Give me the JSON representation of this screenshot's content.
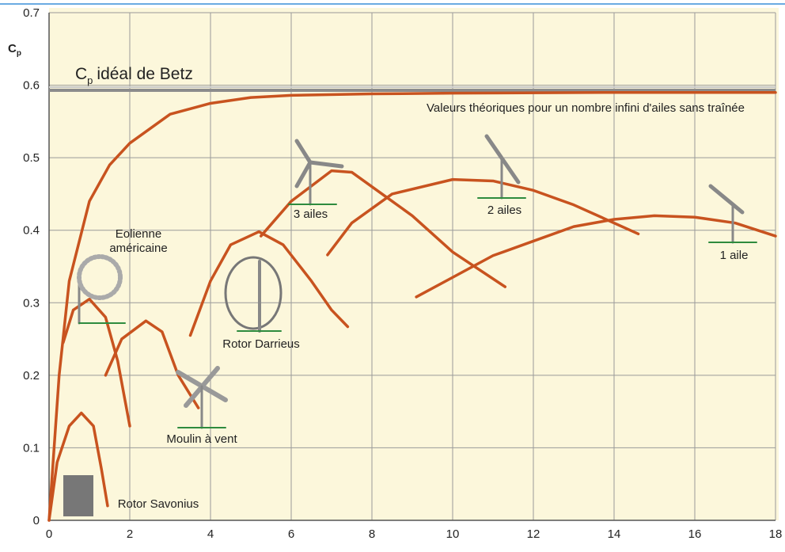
{
  "chart_data": {
    "type": "line",
    "ylabel": {
      "symbol": "C",
      "subscript": "p"
    },
    "betz": {
      "value": 0.593,
      "symbol": "C",
      "subscript": "p",
      "text": "idéal de Betz",
      "color": "#8c8c8c"
    },
    "xlim": [
      0,
      18
    ],
    "xticks": [
      0,
      2,
      4,
      6,
      8,
      10,
      12,
      14,
      16,
      18
    ],
    "ylim": [
      0,
      0.7
    ],
    "yticks": [
      0,
      0.1,
      0.2,
      0.3,
      0.4,
      0.5,
      0.6,
      0.7
    ],
    "grid": true,
    "series": [
      {
        "name": "Valeurs théoriques pour un nombre infini d'ailes sans traînée",
        "color": "#c8531f",
        "x": [
          0,
          0.25,
          0.5,
          1,
          1.5,
          2,
          3,
          4,
          5,
          6,
          8,
          10,
          14,
          18
        ],
        "values": [
          0,
          0.2,
          0.33,
          0.44,
          0.49,
          0.52,
          0.56,
          0.575,
          0.583,
          0.586,
          0.588,
          0.589,
          0.59,
          0.59
        ]
      },
      {
        "name": "Rotor Savonius",
        "color": "#c8531f",
        "x": [
          0,
          0.2,
          0.5,
          0.8,
          1.1,
          1.3,
          1.45
        ],
        "values": [
          0,
          0.08,
          0.13,
          0.148,
          0.13,
          0.07,
          0.02
        ]
      },
      {
        "name": "Eolienne américaine",
        "color": "#c8531f",
        "x": [
          0.35,
          0.6,
          1,
          1.4,
          1.7,
          1.9,
          2
        ],
        "values": [
          0.245,
          0.29,
          0.305,
          0.28,
          0.22,
          0.16,
          0.13
        ]
      },
      {
        "name": "Moulin à vent",
        "color": "#c8531f",
        "x": [
          1.4,
          1.8,
          2.4,
          2.8,
          3.2,
          3.7
        ],
        "values": [
          0.2,
          0.25,
          0.275,
          0.26,
          0.2,
          0.155
        ]
      },
      {
        "name": "Rotor Darrieus",
        "color": "#c8531f",
        "x": [
          3.5,
          4,
          4.5,
          5.2,
          5.8,
          6.5,
          7,
          7.4
        ],
        "values": [
          0.255,
          0.33,
          0.38,
          0.398,
          0.38,
          0.33,
          0.29,
          0.267
        ]
      },
      {
        "name": "3 ailes",
        "color": "#c8531f",
        "x": [
          5.25,
          6,
          7,
          7.5,
          8.5,
          9,
          10,
          11.3
        ],
        "values": [
          0.392,
          0.44,
          0.482,
          0.48,
          0.44,
          0.42,
          0.37,
          0.322
        ]
      },
      {
        "name": "2 ailes",
        "color": "#c8531f",
        "x": [
          6.9,
          7.5,
          8.5,
          10,
          11,
          12,
          13,
          14.6
        ],
        "values": [
          0.366,
          0.41,
          0.45,
          0.47,
          0.468,
          0.455,
          0.435,
          0.395
        ]
      },
      {
        "name": "1 aile",
        "color": "#c8531f",
        "x": [
          9.1,
          10,
          11,
          12,
          13,
          14,
          15,
          16,
          17,
          18
        ],
        "values": [
          0.308,
          0.335,
          0.365,
          0.385,
          0.405,
          0.415,
          0.42,
          0.418,
          0.41,
          0.392
        ]
      }
    ]
  }
}
